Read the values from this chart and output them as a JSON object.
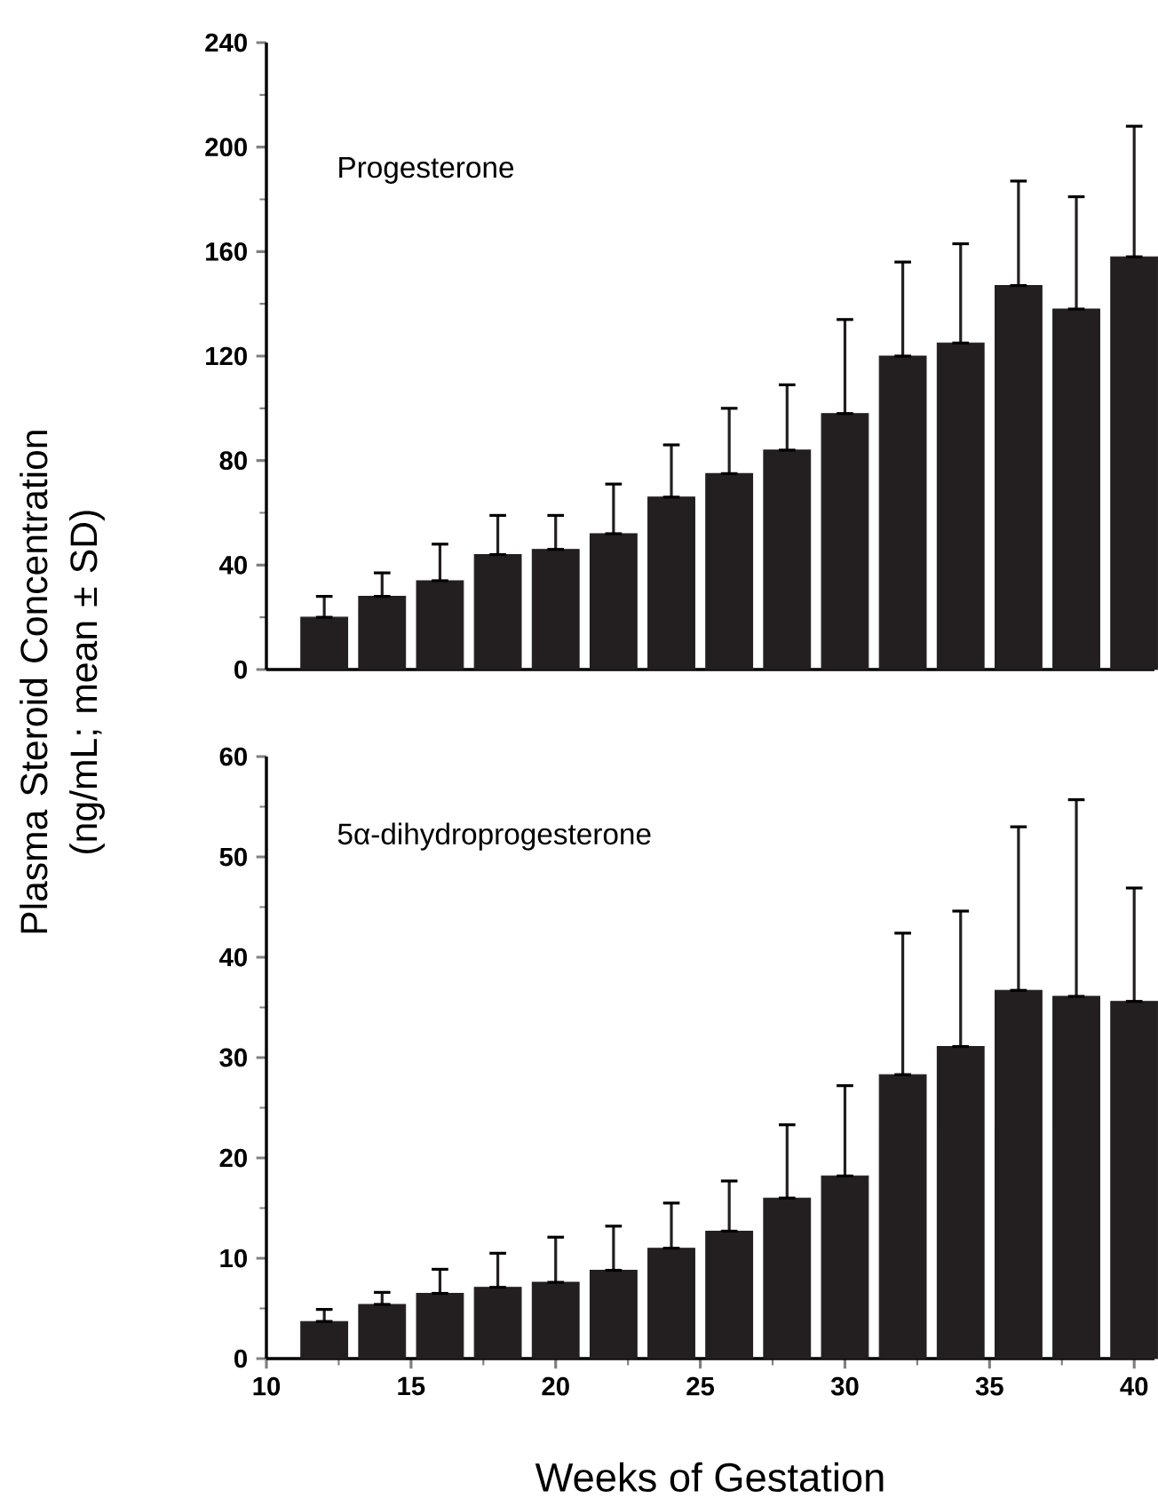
{
  "chart_data": [
    {
      "type": "bar",
      "title": "Progesterone",
      "ylabel": "Plasma Steroid Concentration (ng/mL; mean ± SD)",
      "x": [
        12,
        14,
        16,
        18,
        20,
        22,
        24,
        26,
        28,
        30,
        32,
        34,
        36,
        38,
        40
      ],
      "xlim": [
        10,
        40.7
      ],
      "ylim": [
        0,
        240
      ],
      "yticks": [
        0,
        40,
        80,
        120,
        160,
        200,
        240
      ],
      "tick_labels": "y",
      "color": "#231f20",
      "values": [
        20,
        28,
        34,
        44,
        46,
        52,
        66,
        75,
        84,
        98,
        120,
        125,
        147,
        138,
        158
      ],
      "errors": [
        [
          20,
          28
        ],
        [
          28,
          37
        ],
        [
          34,
          48
        ],
        [
          44,
          59
        ],
        [
          46,
          59
        ],
        [
          52,
          71
        ],
        [
          66,
          86
        ],
        [
          75,
          100
        ],
        [
          84,
          109
        ],
        [
          98,
          134
        ],
        [
          120,
          156
        ],
        [
          125,
          163
        ],
        [
          147,
          187
        ],
        [
          138,
          181
        ],
        [
          158,
          208
        ]
      ]
    },
    {
      "type": "bar",
      "title": "5α-dihydroprogesterone",
      "xlabel": "Weeks of Gestation",
      "x": [
        12,
        14,
        16,
        18,
        20,
        22,
        24,
        26,
        28,
        30,
        32,
        34,
        36,
        38,
        40
      ],
      "xlim": [
        10,
        40.7
      ],
      "xticks": [
        10,
        15,
        20,
        25,
        30,
        35,
        40
      ],
      "ylim": [
        0,
        60
      ],
      "yticks": [
        0,
        10,
        20,
        30,
        40,
        50,
        60
      ],
      "color": "#231f20",
      "values": [
        3.7,
        5.4,
        6.5,
        7.1,
        7.6,
        8.8,
        11,
        12.7,
        16,
        18.2,
        28.3,
        31.1,
        36.7,
        36.1,
        35.6
      ],
      "errors": [
        [
          3.7,
          4.9
        ],
        [
          5.4,
          6.6
        ],
        [
          6.5,
          8.9
        ],
        [
          7.1,
          10.5
        ],
        [
          7.6,
          12.1
        ],
        [
          8.8,
          13.2
        ],
        [
          11,
          15.5
        ],
        [
          12.7,
          17.7
        ],
        [
          16,
          23.3
        ],
        [
          18.2,
          27.2
        ],
        [
          28.3,
          42.4
        ],
        [
          31.1,
          44.6
        ],
        [
          36.7,
          53
        ],
        [
          36.1,
          55.7
        ],
        [
          35.6,
          46.9
        ]
      ]
    }
  ]
}
